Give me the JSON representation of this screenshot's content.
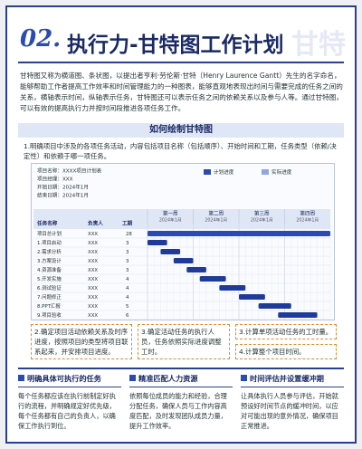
{
  "header": {
    "number": "02.",
    "title": "执行力-甘特图工作计划",
    "watermark": "甘特"
  },
  "intro": "甘特图又称为横道图、条状图，以提出者亨利·劳伦斯·甘特（Henry Laurence Gantt）先生的名字命名，能够帮助工作者提高工作效率和时间管理能力的一种图表，能够直观地表现出时间与需要完成的任务之间的关系，横轴表示时间，纵轴表示任务，甘特图还可以表示任务之间的依赖关系以及参与人等。通过甘特图，可以有效的提高执行力并按时间段推进各项任务工作。",
  "section_title": "如何绘制甘特图",
  "steps": [
    "1.明确项目中涉及的各项任务活动，内容包括项目名称（包括顺序）、开始时间和工期，任务类型（依赖/决定性）和依赖于哪一项任务。",
    "2.确定项目活动依赖关系及时序进度，按照项目的类型将项目联系起来，并安排项目进度。",
    "3.确定活动任务的执行人员，任务依照实际进度调整工时。",
    "3.计算单项活动任务的工时量。",
    "4.计算整个项目时间。"
  ],
  "gantt": {
    "info": [
      "项目名称：XXXX项目计划表",
      "项目经理：XXX",
      "开始日期：2024年1月",
      "结束日期：2024年1月"
    ],
    "legend": [
      "计划进度",
      "实际进度"
    ],
    "columns": [
      "任务名称",
      "负责人",
      "工期"
    ],
    "weeks": [
      "第一周",
      "第二周",
      "第三周",
      "第四周"
    ],
    "month": "2024年1月",
    "total_days": 28,
    "tasks": [
      {
        "name": "项目总计划",
        "owner": "XXX",
        "start": 0,
        "days": 28
      },
      {
        "name": "1.项目启动",
        "owner": "XXX",
        "start": 0,
        "days": 3
      },
      {
        "name": "2.需求分析",
        "owner": "XXX",
        "start": 2,
        "days": 3
      },
      {
        "name": "3.方案设计",
        "owner": "XXX",
        "start": 4,
        "days": 3
      },
      {
        "name": "4.资源准备",
        "owner": "XXX",
        "start": 6,
        "days": 3
      },
      {
        "name": "5.开发实施",
        "owner": "XXX",
        "start": 8,
        "days": 4
      },
      {
        "name": "6.测试验证",
        "owner": "XXX",
        "start": 11,
        "days": 4
      },
      {
        "name": "7.问题修正",
        "owner": "XXX",
        "start": 14,
        "days": 4
      },
      {
        "name": "8.PPT汇报",
        "owner": "XXX",
        "start": 17,
        "days": 5
      },
      {
        "name": "9.项目验收",
        "owner": "XXX",
        "start": 20,
        "days": 6
      }
    ]
  },
  "tips": [
    {
      "title": "明确具体可执行的任务",
      "text": "每个任务都应该在执行前制定好执行的流程，并明确规定好优先级，每个任务都有自己的负责人，以确保工作执行到位。"
    },
    {
      "title": "精准匹配人力资源",
      "text": "依照每位成员的能力和经验，合理分配任务，确保人员与工作内容高度匹配，及时发现团队成员力量，提升工作效率。"
    },
    {
      "title": "时间评估并设置缓冲期",
      "text": "让具体执行人员参与评估，开始就预设好时间节点的缓冲时间，以应对可能出现的意外情况，确保项目正常推进。"
    }
  ]
}
